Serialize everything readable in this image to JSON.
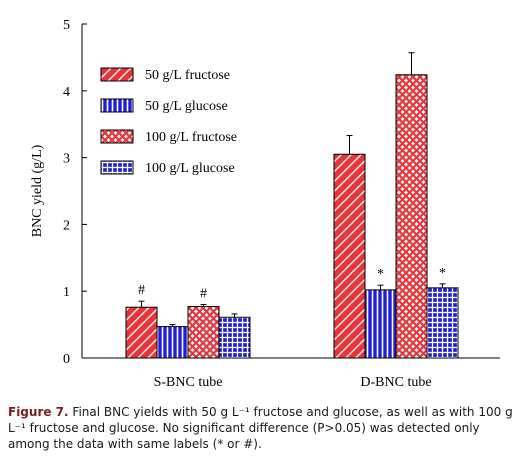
{
  "chart_data": {
    "type": "bar",
    "ylabel": "BNC yield (g/L)",
    "ylim": [
      0,
      5
    ],
    "yticks": [
      "0",
      "1",
      "2",
      "3",
      "4",
      "5"
    ],
    "categories": [
      "S-BNC tube",
      "D-BNC tube"
    ],
    "series": [
      {
        "name": "50 g/L fructose",
        "values": [
          0.76,
          3.05
        ],
        "errors": [
          0.09,
          0.28
        ],
        "labels": [
          "#",
          ""
        ],
        "color": "#e8353a",
        "pattern": "diagonal-hatch"
      },
      {
        "name": "50 g/L glucose",
        "values": [
          0.47,
          1.02
        ],
        "errors": [
          0.03,
          0.07
        ],
        "labels": [
          "",
          "*"
        ],
        "color": "#1f1fd6",
        "pattern": "vertical-stripes"
      },
      {
        "name": "100 g/L fructose",
        "values": [
          0.77,
          4.24
        ],
        "errors": [
          0.03,
          0.33
        ],
        "labels": [
          "#",
          ""
        ],
        "color": "#e8353a",
        "pattern": "crosshatch"
      },
      {
        "name": "100 g/L glucose",
        "values": [
          0.61,
          1.05
        ],
        "errors": [
          0.05,
          0.06
        ],
        "labels": [
          "",
          "*"
        ],
        "color": "#1f1fd6",
        "pattern": "grid"
      }
    ]
  },
  "caption": {
    "label": "Figure 7.",
    "text": " Final BNC yields with 50 g L⁻¹ fructose and glucose, as well as with 100 g L⁻¹ fructose and glucose. No significant difference (P>0.05) was detected only among the data with same labels (* or #)."
  }
}
